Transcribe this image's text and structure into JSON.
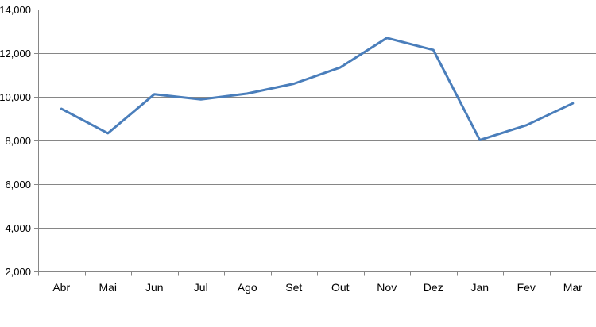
{
  "chart_data": {
    "type": "line",
    "title": "",
    "xlabel": "",
    "ylabel": "",
    "categories": [
      "Abr",
      "Mai",
      "Jun",
      "Jul",
      "Ago",
      "Set",
      "Out",
      "Nov",
      "Dez",
      "Jan",
      "Fev",
      "Mar"
    ],
    "series": [
      {
        "values": [
          9450,
          8330,
          10120,
          9880,
          10150,
          10600,
          11350,
          12700,
          12150,
          8020,
          8700,
          9700
        ],
        "color": "#4a7ebb"
      }
    ],
    "ylim": [
      2000,
      14000
    ],
    "yticks": [
      2000,
      4000,
      6000,
      8000,
      10000,
      12000,
      14000
    ],
    "ytick_labels": [
      "2,000",
      "4,000",
      "6,000",
      "8,000",
      "10,000",
      "12,000",
      "14,000"
    ],
    "grid": "horizontal",
    "legend": "none",
    "gridline_color": "#868686",
    "axis_color": "#868686"
  }
}
